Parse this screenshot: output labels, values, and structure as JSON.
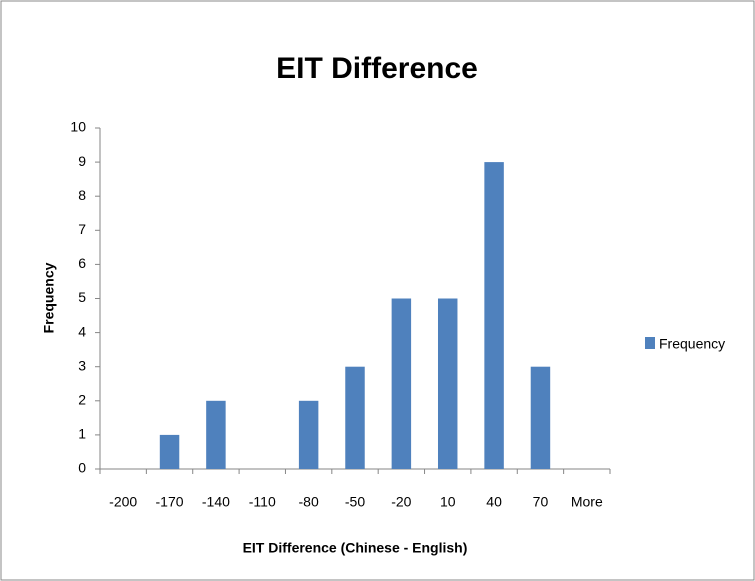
{
  "chart_data": {
    "type": "bar",
    "title": "EIT Difference",
    "x_label": "EIT Difference (Chinese  - English)",
    "y_label": "Frequency",
    "categories": [
      "-200",
      "-170",
      "-140",
      "-110",
      "-80",
      "-50",
      "-20",
      "10",
      "40",
      "70",
      "More"
    ],
    "series": [
      {
        "name": "Frequency",
        "color": "#4f81bd",
        "values": [
          0,
          1,
          2,
          0,
          2,
          3,
          5,
          5,
          9,
          3,
          0
        ]
      }
    ],
    "ylim": [
      0,
      10
    ],
    "yticks": [
      0,
      1,
      2,
      3,
      4,
      5,
      6,
      7,
      8,
      9,
      10
    ],
    "legend": "right"
  }
}
